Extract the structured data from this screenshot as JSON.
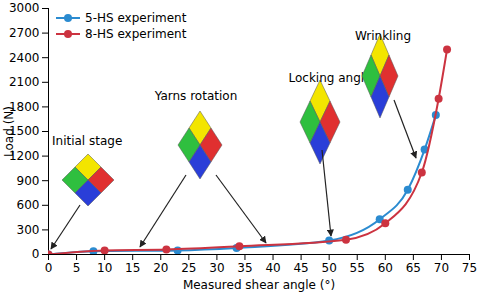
{
  "chart_data": {
    "type": "line",
    "x_label": "Measured shear angle (°)",
    "y_label": "Load (N)",
    "xlim": [
      0,
      75
    ],
    "xticks": [
      0,
      5,
      10,
      15,
      20,
      25,
      30,
      35,
      40,
      45,
      50,
      55,
      60,
      65,
      70,
      75
    ],
    "ylim": [
      0,
      3000
    ],
    "yticks": [
      0,
      300,
      600,
      900,
      1200,
      1500,
      1800,
      2100,
      2400,
      2700,
      3000
    ],
    "grid": false,
    "legend": "upper left",
    "marker": "circle",
    "series": [
      {
        "name": "5-HS experiment",
        "color": "#2b8bd0",
        "x": [
          0,
          8,
          23,
          33.5,
          50,
          59,
          64,
          67,
          69
        ],
        "values": [
          0,
          40,
          50,
          80,
          170,
          430,
          790,
          1280,
          1700
        ]
      },
      {
        "name": "8-HS experiment",
        "color": "#cc3340",
        "x": [
          0,
          10,
          21,
          34,
          53,
          60,
          66.5,
          69.5,
          71
        ],
        "values": [
          0,
          50,
          60,
          100,
          180,
          380,
          1000,
          1900,
          2500
        ]
      }
    ],
    "annotations": [
      "Initial stage",
      "Yarns rotation",
      "Locking angle",
      "Wrinkling"
    ]
  }
}
